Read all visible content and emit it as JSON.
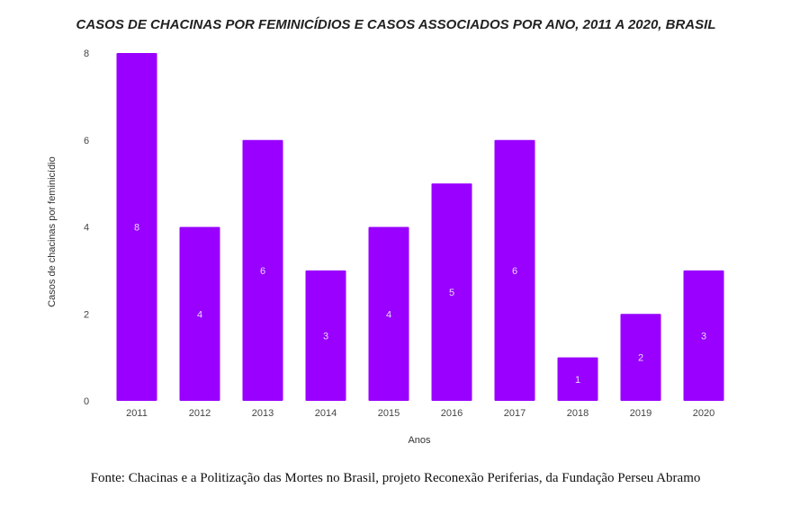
{
  "chart_data": {
    "type": "bar",
    "title": "CASOS DE CHACINAS POR FEMINICÍDIOS E CASOS ASSOCIADOS POR ANO, 2011 A 2020, BRASIL",
    "xlabel": "Anos",
    "ylabel": "Casos de chacinas por feminicídio",
    "categories": [
      "2011",
      "2012",
      "2013",
      "2014",
      "2015",
      "2016",
      "2017",
      "2018",
      "2019",
      "2020"
    ],
    "values": [
      8,
      4,
      6,
      3,
      4,
      5,
      6,
      1,
      2,
      3
    ],
    "ylim": [
      0,
      8
    ],
    "yticks": [
      "0",
      "2",
      "4",
      "6",
      "8"
    ],
    "grid": false,
    "bar_color": "#9900ff"
  },
  "footer": "Fonte: Chacinas e a Politização das Mortes no Brasil, projeto Reconexão Periferias, da Fundação Perseu Abramo"
}
